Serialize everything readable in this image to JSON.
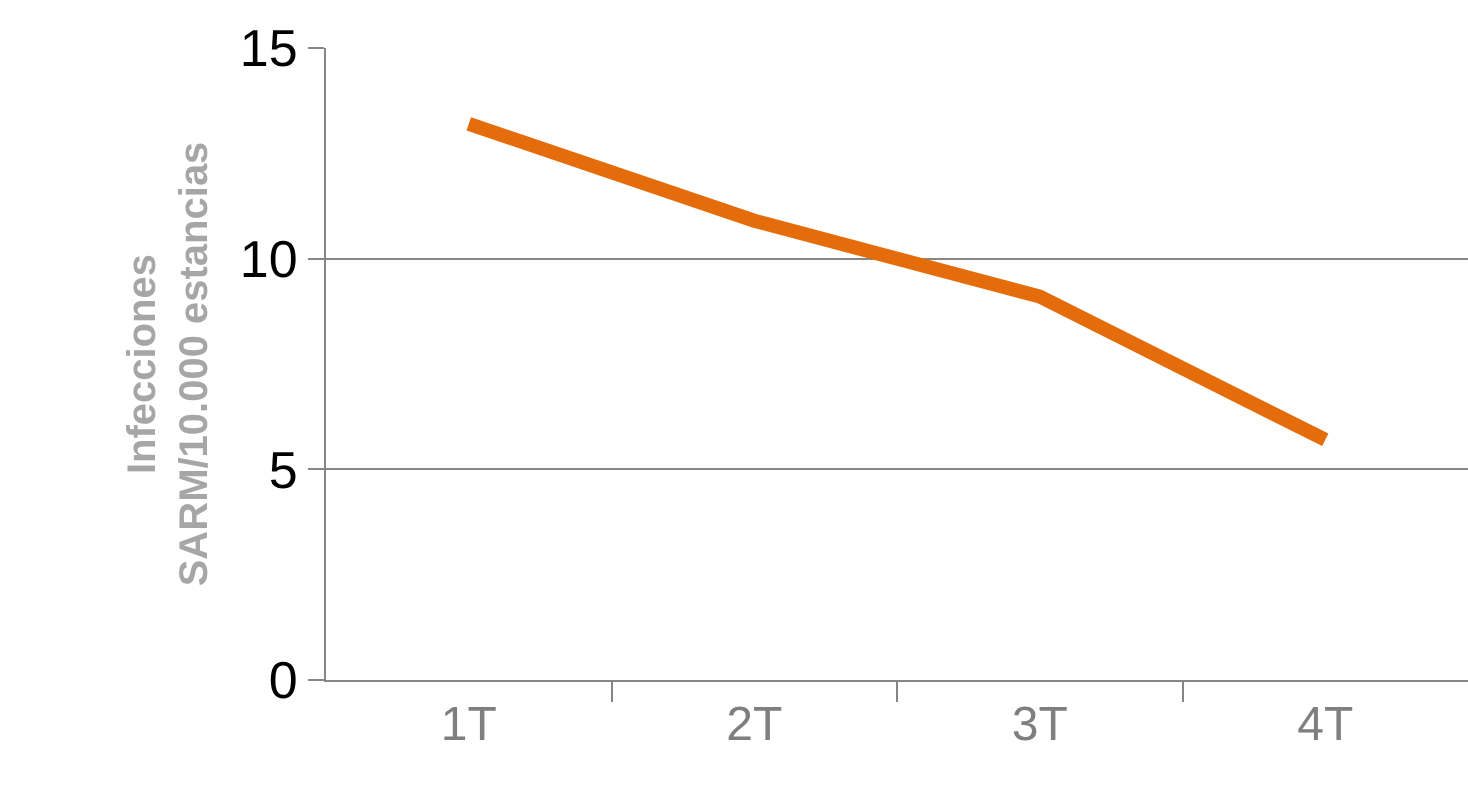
{
  "chart_data": {
    "type": "line",
    "ylabel": "Infecciones\nSARM/10.000 estancias",
    "categories": [
      "1T",
      "2T",
      "3T",
      "4T"
    ],
    "series": [
      {
        "color": "#e46c0a",
        "values": [
          13.2,
          10.9,
          9.1,
          5.7
        ]
      }
    ],
    "ylim": [
      0,
      15
    ],
    "yticks": [
      0,
      5,
      10,
      15
    ],
    "grid": "y",
    "legend": false,
    "marker": "none",
    "line_style": "solid"
  }
}
